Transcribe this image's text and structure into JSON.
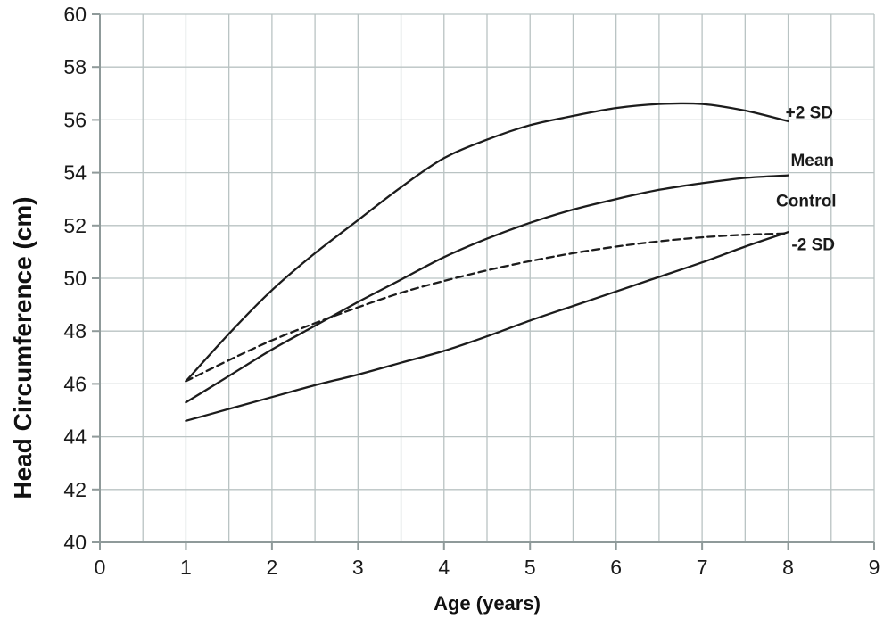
{
  "chart_data": {
    "type": "line",
    "title": "",
    "xlabel": "Age (years)",
    "ylabel": "Head Circumference (cm)",
    "xlim": [
      0,
      9
    ],
    "ylim": [
      40,
      60
    ],
    "x_ticks": [
      0,
      1,
      2,
      3,
      4,
      5,
      6,
      7,
      8,
      9
    ],
    "y_ticks": [
      40,
      42,
      44,
      46,
      48,
      50,
      52,
      54,
      56,
      58,
      60
    ],
    "grid": true,
    "minor_x_grid_step": 0.5,
    "legend_position": "inline-right-labels",
    "x": [
      1,
      1.5,
      2,
      2.5,
      3,
      3.5,
      4,
      4.5,
      5,
      5.5,
      6,
      6.5,
      7,
      7.5,
      8
    ],
    "series": [
      {
        "name": "+2 SD",
        "style": "solid",
        "values": [
          46.1,
          47.9,
          49.55,
          50.95,
          52.2,
          53.45,
          54.55,
          55.25,
          55.8,
          56.15,
          56.45,
          56.6,
          56.6,
          56.35,
          55.95
        ],
        "label": {
          "text": "+2 SD",
          "x": 7.97,
          "y": 56.3
        }
      },
      {
        "name": "Mean",
        "style": "solid",
        "values": [
          45.3,
          46.3,
          47.3,
          48.2,
          49.1,
          49.95,
          50.8,
          51.5,
          52.1,
          52.6,
          53.0,
          53.35,
          53.6,
          53.8,
          53.9
        ],
        "label": {
          "text": "Mean",
          "x": 8.03,
          "y": 54.5
        }
      },
      {
        "name": "Control",
        "style": "dashed",
        "values": [
          46.1,
          46.9,
          47.65,
          48.3,
          48.9,
          49.45,
          49.9,
          50.3,
          50.65,
          50.95,
          51.2,
          51.4,
          51.55,
          51.65,
          51.7
        ],
        "label": {
          "text": "Control",
          "x": 7.86,
          "y": 52.95
        }
      },
      {
        "name": "-2 SD",
        "style": "solid",
        "values": [
          44.6,
          45.05,
          45.5,
          45.95,
          46.35,
          46.8,
          47.25,
          47.8,
          48.4,
          48.95,
          49.5,
          50.05,
          50.6,
          51.2,
          51.75
        ],
        "label": {
          "text": "-2 SD",
          "x": 8.04,
          "y": 51.3
        }
      }
    ],
    "colors": {
      "line": "#1c1c1c",
      "grid": "#b9c3c3",
      "axis": "#8f9a9a",
      "text": "#1a1a1a"
    }
  }
}
